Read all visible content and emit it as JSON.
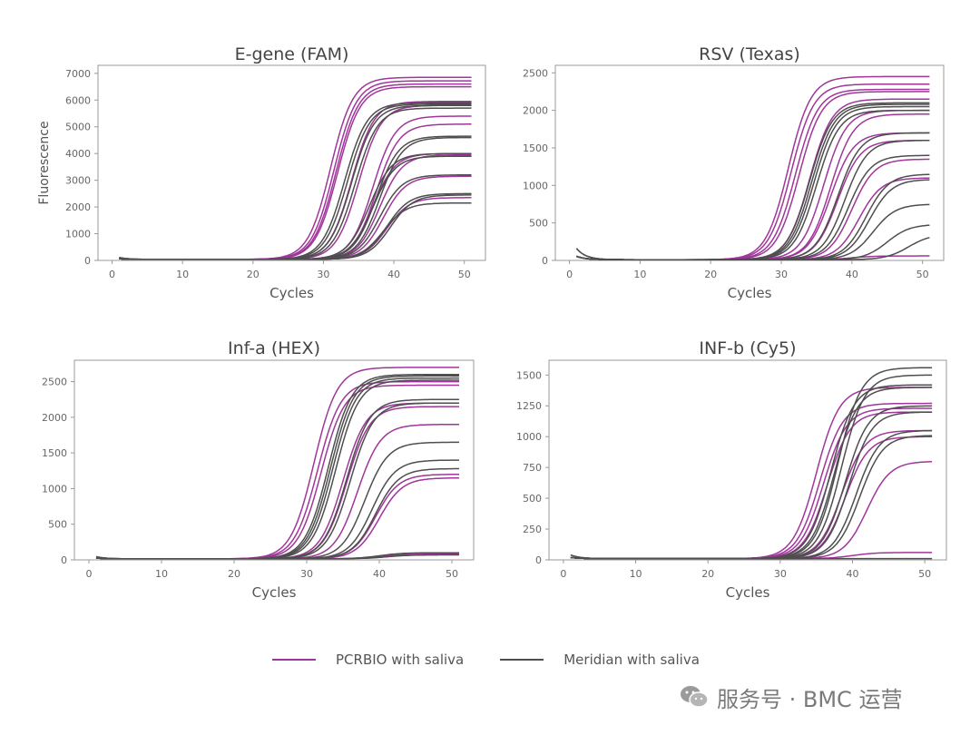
{
  "colors": {
    "pcrbio": "#a0359a",
    "meridian": "#4e4e4e",
    "axis": "#999999",
    "text": "#555555"
  },
  "legend": {
    "items": [
      {
        "label": "PCRBIO with saliva",
        "color": "#a0359a"
      },
      {
        "label": "Meridian with saliva",
        "color": "#4e4e4e"
      }
    ]
  },
  "watermark": {
    "text": "服务号 · BMC 运营",
    "icon": "wechat-icon"
  },
  "chart_data": [
    {
      "type": "line",
      "title": "E-gene (FAM)",
      "xlabel": "Cycles",
      "ylabel": "Fluorescence",
      "xlim": [
        -2,
        53
      ],
      "ylim": [
        0,
        7300
      ],
      "xticks": [
        0,
        10,
        20,
        30,
        40,
        50
      ],
      "yticks": [
        0,
        1000,
        2000,
        3000,
        4000,
        5000,
        6000,
        7000
      ],
      "baseline": 40,
      "spike": 70,
      "series": [
        {
          "name": "PCRBIO with saliva",
          "curves": [
            [
              6850,
              31
            ],
            [
              6720,
              31.5
            ],
            [
              6600,
              31.8
            ],
            [
              6500,
              32
            ],
            [
              5800,
              35
            ],
            [
              5400,
              37
            ],
            [
              5100,
              37.5
            ],
            [
              5950,
              34
            ],
            [
              3950,
              38
            ],
            [
              3150,
              38.5
            ],
            [
              2350,
              39
            ],
            [
              4000,
              37
            ]
          ]
        },
        {
          "name": "Meridian with saliva",
          "curves": [
            [
              5900,
              33
            ],
            [
              5850,
              33.4
            ],
            [
              5800,
              34
            ],
            [
              5700,
              34.5
            ],
            [
              4650,
              37.5
            ],
            [
              4600,
              38
            ],
            [
              4000,
              36.5
            ],
            [
              3900,
              37
            ],
            [
              3200,
              38
            ],
            [
              2500,
              39
            ],
            [
              2450,
              39.5
            ],
            [
              2150,
              38.5
            ]
          ]
        }
      ]
    },
    {
      "type": "line",
      "title": "RSV (Texas)",
      "xlabel": "Cycles",
      "ylabel": "",
      "xlim": [
        -2,
        53
      ],
      "ylim": [
        0,
        2600
      ],
      "xticks": [
        0,
        10,
        20,
        30,
        40,
        50
      ],
      "yticks": [
        0,
        500,
        1000,
        1500,
        2000,
        2500
      ],
      "baseline": 10,
      "spike": 150,
      "series": [
        {
          "name": "PCRBIO with saliva",
          "curves": [
            [
              2450,
              31
            ],
            [
              2350,
              31.4
            ],
            [
              2280,
              32
            ],
            [
              2250,
              32.5
            ],
            [
              2150,
              34
            ],
            [
              2000,
              36
            ],
            [
              1950,
              37
            ],
            [
              1700,
              37
            ],
            [
              1600,
              38
            ],
            [
              1350,
              40
            ],
            [
              1100,
              41
            ],
            [
              60,
              40
            ]
          ]
        },
        {
          "name": "Meridian with saliva",
          "curves": [
            [
              2100,
              34
            ],
            [
              2080,
              34.3
            ],
            [
              2050,
              34.6
            ],
            [
              2000,
              35
            ],
            [
              1700,
              38
            ],
            [
              1600,
              39
            ],
            [
              1400,
              39.5
            ],
            [
              1150,
              42
            ],
            [
              1080,
              42.5
            ],
            [
              750,
              43
            ],
            [
              480,
              45
            ],
            [
              350,
              48
            ]
          ]
        }
      ]
    },
    {
      "type": "line",
      "title": "Inf-a (HEX)",
      "xlabel": "Cycles",
      "ylabel": "",
      "xlim": [
        -2,
        53
      ],
      "ylim": [
        0,
        2800
      ],
      "xticks": [
        0,
        10,
        20,
        30,
        40,
        50
      ],
      "yticks": [
        0,
        500,
        1000,
        1500,
        2000,
        2500
      ],
      "baseline": 15,
      "spike": 30,
      "series": [
        {
          "name": "PCRBIO with saliva",
          "curves": [
            [
              2700,
              31
            ],
            [
              2500,
              31.5
            ],
            [
              2450,
              32
            ],
            [
              2200,
              35
            ],
            [
              2150,
              35.5
            ],
            [
              1900,
              37
            ],
            [
              1200,
              39.5
            ],
            [
              1150,
              40
            ],
            [
              80,
              40
            ]
          ]
        },
        {
          "name": "Meridian with saliva",
          "curves": [
            [
              2600,
              33
            ],
            [
              2580,
              33.3
            ],
            [
              2550,
              33.6
            ],
            [
              2520,
              34
            ],
            [
              2250,
              35.5
            ],
            [
              2200,
              36
            ],
            [
              1650,
              38
            ],
            [
              1400,
              39
            ],
            [
              1280,
              39.5
            ],
            [
              100,
              40
            ],
            [
              70,
              41
            ]
          ]
        }
      ]
    },
    {
      "type": "line",
      "title": "INF-b (Cy5)",
      "xlabel": "Cycles",
      "ylabel": "",
      "xlim": [
        -2,
        53
      ],
      "ylim": [
        0,
        1620
      ],
      "xticks": [
        0,
        10,
        20,
        30,
        40,
        50
      ],
      "yticks": [
        0,
        250,
        500,
        750,
        1000,
        1250,
        1500
      ],
      "baseline": 10,
      "spike": 30,
      "series": [
        {
          "name": "PCRBIO with saliva",
          "curves": [
            [
              1400,
              35
            ],
            [
              1270,
              35.5
            ],
            [
              1230,
              36
            ],
            [
              1200,
              36.5
            ],
            [
              1050,
              38.5
            ],
            [
              1000,
              39
            ],
            [
              800,
              42
            ],
            [
              60,
              40
            ]
          ]
        },
        {
          "name": "Meridian with saliva",
          "curves": [
            [
              1560,
              38
            ],
            [
              1500,
              38.5
            ],
            [
              1420,
              37
            ],
            [
              1400,
              37.5
            ],
            [
              1250,
              39
            ],
            [
              1200,
              39.5
            ],
            [
              1050,
              40.5
            ],
            [
              1010,
              41
            ],
            [
              10,
              40
            ]
          ]
        }
      ]
    }
  ]
}
